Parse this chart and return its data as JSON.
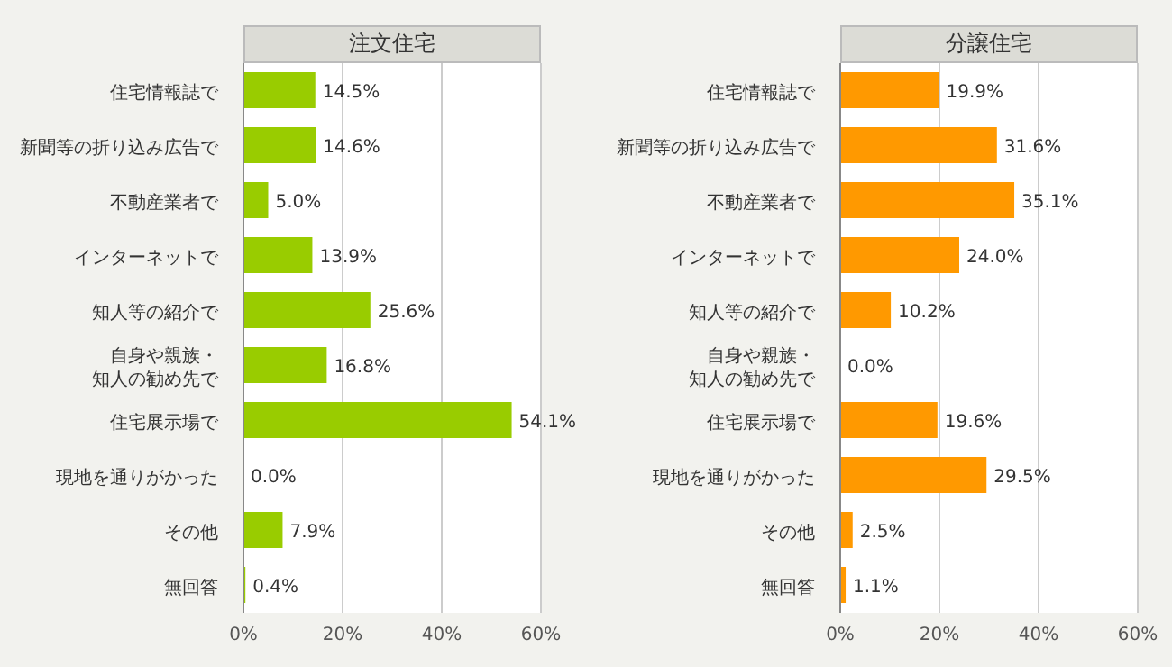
{
  "chart_data": [
    {
      "type": "bar",
      "orientation": "horizontal",
      "title": "注文住宅",
      "categories": [
        "住宅情報誌で",
        "新聞等の折り込み広告で",
        "不動産業者で",
        "インターネットで",
        "知人等の紹介で",
        "自身や親族・知人の勧め先で",
        "住宅展示場で",
        "現地を通りがかった",
        "その他",
        "無回答"
      ],
      "values": [
        14.5,
        14.6,
        5.0,
        13.9,
        25.6,
        16.8,
        54.1,
        0.0,
        7.9,
        0.4
      ],
      "value_labels": [
        "14.5%",
        "14.6%",
        "5.0%",
        "13.9%",
        "25.6%",
        "16.8%",
        "54.1%",
        "0.0%",
        "7.9%",
        "0.4%"
      ],
      "color": "#99cc00",
      "xlim": [
        0,
        60
      ],
      "xticks": [
        {
          "value": 0,
          "label": "0%"
        },
        {
          "value": 20,
          "label": "20%"
        },
        {
          "value": 40,
          "label": "40%"
        },
        {
          "value": 60,
          "label": "60%"
        }
      ],
      "grid": "x"
    },
    {
      "type": "bar",
      "orientation": "horizontal",
      "title": "分譲住宅",
      "categories": [
        "住宅情報誌で",
        "新聞等の折り込み広告で",
        "不動産業者で",
        "インターネットで",
        "知人等の紹介で",
        "自身や親族・知人の勧め先で",
        "住宅展示場で",
        "現地を通りがかった",
        "その他",
        "無回答"
      ],
      "values": [
        19.9,
        31.6,
        35.1,
        24.0,
        10.2,
        0.0,
        19.6,
        29.5,
        2.5,
        1.1
      ],
      "value_labels": [
        "19.9%",
        "31.6%",
        "35.1%",
        "24.0%",
        "10.2%",
        "0.0%",
        "19.6%",
        "29.5%",
        "2.5%",
        "1.1%"
      ],
      "color": "#ff9900",
      "xlim": [
        0,
        60
      ],
      "xticks": [
        {
          "value": 0,
          "label": "0%"
        },
        {
          "value": 20,
          "label": "20%"
        },
        {
          "value": 40,
          "label": "40%"
        },
        {
          "value": 60,
          "label": "60%"
        }
      ],
      "grid": "x"
    }
  ]
}
